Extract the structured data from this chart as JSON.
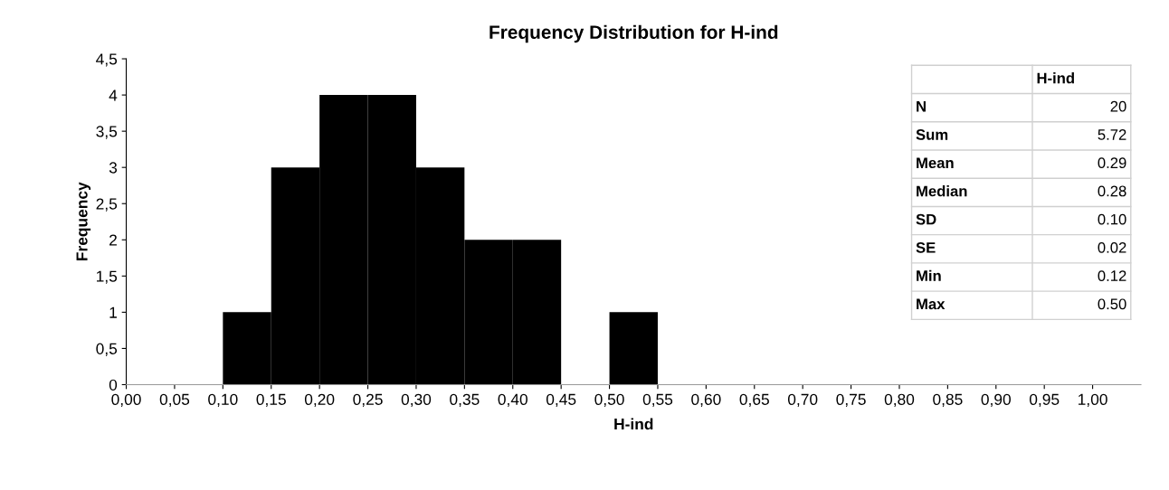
{
  "chart_data": {
    "type": "histogram",
    "title": "Frequency Distribution for H-ind",
    "xlabel": "H-ind",
    "ylabel": "Frequency",
    "color": "#000000",
    "bins": [
      0.0,
      0.05,
      0.1,
      0.15,
      0.2,
      0.25,
      0.3,
      0.35,
      0.4,
      0.45,
      0.5,
      0.55,
      0.6,
      0.65,
      0.7,
      0.75,
      0.8,
      0.85,
      0.9,
      0.95,
      1.0,
      1.05
    ],
    "values": [
      0,
      0,
      1,
      3,
      4,
      4,
      3,
      2,
      2,
      0,
      1,
      0,
      0,
      0,
      0,
      0,
      0,
      0,
      0,
      0,
      0
    ],
    "xlim": [
      0,
      1.05
    ],
    "xticks": [
      {
        "value": 0.0,
        "label": "0,00"
      },
      {
        "value": 0.05,
        "label": "0,05"
      },
      {
        "value": 0.1,
        "label": "0,10"
      },
      {
        "value": 0.15,
        "label": "0,15"
      },
      {
        "value": 0.2,
        "label": "0,20"
      },
      {
        "value": 0.25,
        "label": "0,25"
      },
      {
        "value": 0.3,
        "label": "0,30"
      },
      {
        "value": 0.35,
        "label": "0,35"
      },
      {
        "value": 0.4,
        "label": "0,40"
      },
      {
        "value": 0.45,
        "label": "0,45"
      },
      {
        "value": 0.5,
        "label": "0,50"
      },
      {
        "value": 0.55,
        "label": "0,55"
      },
      {
        "value": 0.6,
        "label": "0,60"
      },
      {
        "value": 0.65,
        "label": "0,65"
      },
      {
        "value": 0.7,
        "label": "0,70"
      },
      {
        "value": 0.75,
        "label": "0,75"
      },
      {
        "value": 0.8,
        "label": "0,80"
      },
      {
        "value": 0.85,
        "label": "0,85"
      },
      {
        "value": 0.9,
        "label": "0,90"
      },
      {
        "value": 0.95,
        "label": "0,95"
      },
      {
        "value": 1.0,
        "label": "1,00"
      }
    ],
    "ylim": [
      0,
      4.5
    ],
    "yticks": [
      0,
      {
        "value": 0.5,
        "label": "0,5"
      },
      1,
      {
        "value": 1.5,
        "label": "1,5"
      },
      2,
      {
        "value": 2.5,
        "label": "2,5"
      },
      3,
      {
        "value": 3.5,
        "label": "3,5"
      },
      4,
      {
        "value": 4.5,
        "label": "4,5"
      }
    ],
    "grid": false,
    "annotations": [
      "H-ind",
      "N",
      "20",
      "Sum",
      "5.72",
      "Mean",
      "0.29",
      "Median",
      "0.28",
      "SD",
      "0.10",
      "SE",
      "0.02",
      "Min",
      "0.12",
      "Max",
      "0.50"
    ]
  }
}
